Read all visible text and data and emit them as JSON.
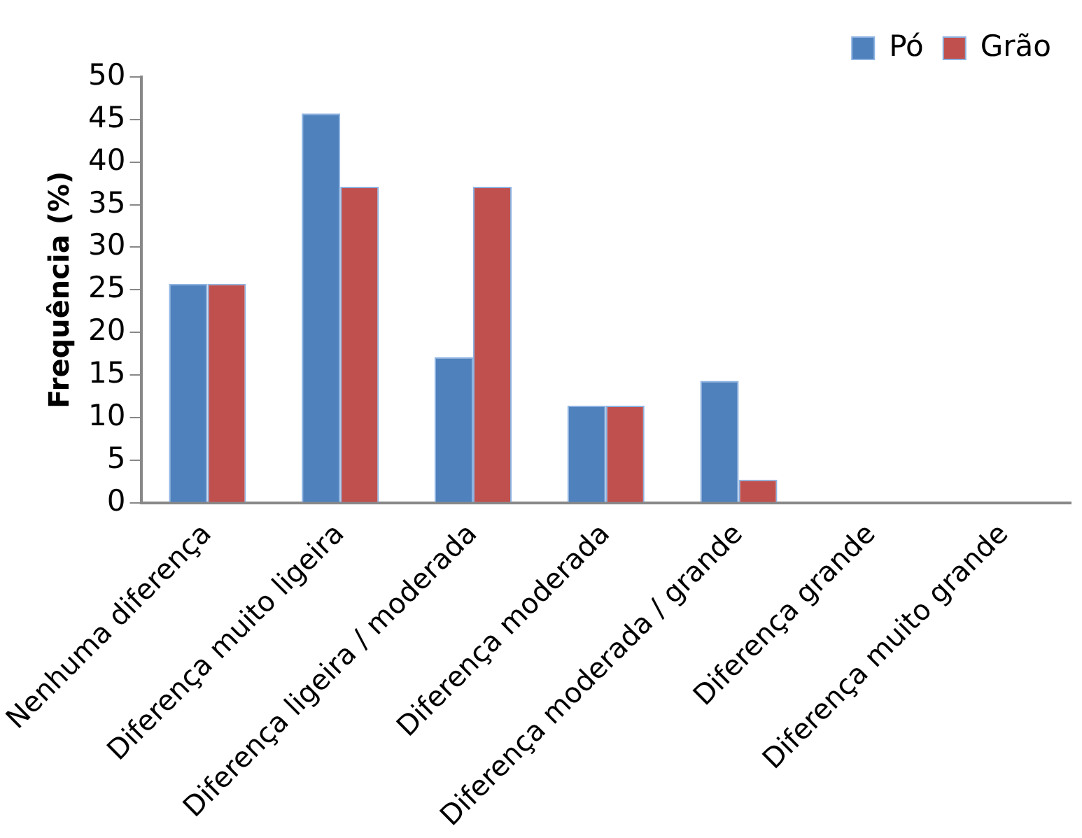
{
  "chart_data": {
    "type": "bar",
    "ylabel": "Frequência (%)",
    "categories": [
      "Nenhuma diferença",
      "Diferença muito ligeira",
      "Diferença ligeira / moderada",
      "Diferença moderada",
      "Diferença moderada / grande",
      "Diferença grande",
      "Diferença muito grande"
    ],
    "series": [
      {
        "name": "Pó",
        "color": "#4f81bd",
        "values": [
          25.7,
          45.7,
          17.1,
          11.4,
          14.3,
          0,
          0
        ]
      },
      {
        "name": "Grão",
        "color": "#c0504d",
        "values": [
          25.7,
          37.1,
          37.1,
          11.4,
          2.7,
          0,
          0
        ]
      }
    ],
    "ylim": [
      0,
      50
    ],
    "yticks": [
      0,
      5,
      10,
      15,
      20,
      25,
      30,
      35,
      40,
      45,
      50
    ],
    "grid": false,
    "legend": "top right"
  }
}
